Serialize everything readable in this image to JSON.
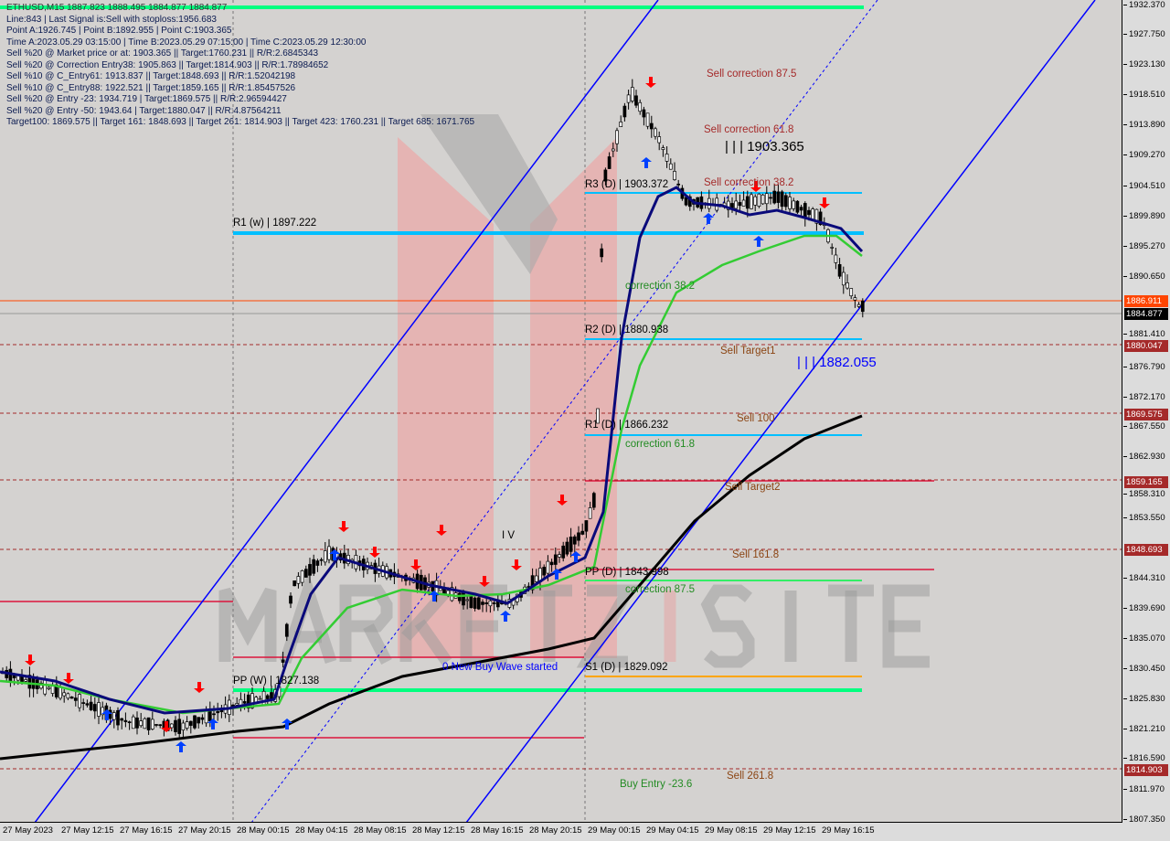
{
  "header": {
    "symbol_line": "ETHUSD,M15 1887.823 1888.495 1884.877 1884.877"
  },
  "info_lines": [
    "Line:843 | Last Signal is:Sell with stoploss:1956.683",
    "Point A:1926.745 | Point B:1892.955 | Point C:1903.365",
    "Time A:2023.05.29 03:15:00 | Time B:2023.05.29 07:15:00 | Time C:2023.05.29 12:30:00",
    "Sell %20 @ Market price or at: 1903.365 || Target:1760.231 || R/R:2.6845343",
    "Sell %20 @ Correction Entry38: 1905.863 || Target:1814.903 || R/R:1.78984652",
    "Sell %10 @ C_Entry61: 1913.837 || Target:1848.693 || R/R:1.52042198",
    "Sell %10 @ C_Entry88: 1922.521 || Target:1859.165 || R/R:1.85457526",
    "Sell %20 @ Entry -23: 1934.719 | Target:1869.575 || R/R:2.96594427",
    "Sell %20 @ Entry -50: 1943.64 | Target:1880.047 || R/R:4.87564211",
    "Target100: 1869.575 || Target 161: 1848.693 || Target 261: 1814.903 || Target 423: 1760.231 || Target 685: 1671.765"
  ],
  "price_axis": [
    "1932.370",
    "1927.750",
    "1923.130",
    "1918.510",
    "1913.890",
    "1909.270",
    "1904.510",
    "1899.890",
    "1895.270",
    "1890.650",
    "1881.410",
    "1876.790",
    "1872.170",
    "1867.550",
    "1862.930",
    "1858.310",
    "1853.550",
    "1844.310",
    "1839.690",
    "1835.070",
    "1830.450",
    "1825.830",
    "1821.210",
    "1816.590",
    "1811.970",
    "1807.350"
  ],
  "price_tags": [
    {
      "value": "1886.911",
      "color": "#ff4500"
    },
    {
      "value": "1884.877",
      "color": "#000000"
    },
    {
      "value": "1880.047",
      "color": "#a52a2a"
    },
    {
      "value": "1869.575",
      "color": "#a52a2a"
    },
    {
      "value": "1859.165",
      "color": "#a52a2a"
    },
    {
      "value": "1848.693",
      "color": "#a52a2a"
    },
    {
      "value": "1814.903",
      "color": "#a52a2a"
    }
  ],
  "time_axis": [
    "27 May 2023",
    "27 May 12:15",
    "27 May 16:15",
    "27 May 20:15",
    "28 May 00:15",
    "28 May 04:15",
    "28 May 08:15",
    "28 May 12:15",
    "28 May 16:15",
    "28 May 20:15",
    "29 May 00:15",
    "29 May 04:15",
    "29 May 08:15",
    "29 May 12:15",
    "29 May 16:15"
  ],
  "labels": {
    "r1w": "R1 (w) | 1897.222",
    "r3d": "R3 (D) | 1903.372",
    "r2d": "R2 (D) | 1880.938",
    "r1d": "R1 (D) | 1866.232",
    "ppd": "PP (D) | 1843.998",
    "s1d": "S1 (D) | 1829.092",
    "ppw": "PP (W) | 1827.138",
    "sc875": "Sell correction 87.5",
    "sc618": "Sell correction 61.8",
    "sc382": "Sell correction 38.2",
    "pointc": "| | | 1903.365",
    "target1": "Sell Target1",
    "target1v": "| | | 1882.055",
    "sell100": "Sell 100",
    "target2": "Sell Target2",
    "sell1618": "Sell 161.8",
    "sell2618": "Sell  261.8",
    "corr382": "correction 38.2",
    "corr618": "correction 61.8",
    "corr875": "correction 87.5",
    "newbuy": "0 New Buy Wave started",
    "buyentry": "Buy Entry -23.6",
    "iv": "I V"
  },
  "watermark": "MARKETZISITE",
  "colors": {
    "support": "#00bfff",
    "ma_fast": "#0a0a7a",
    "ma_mid": "#33cc33",
    "ma_slow": "#000000",
    "channel": "#0000ff",
    "target": "#a52a2a"
  }
}
